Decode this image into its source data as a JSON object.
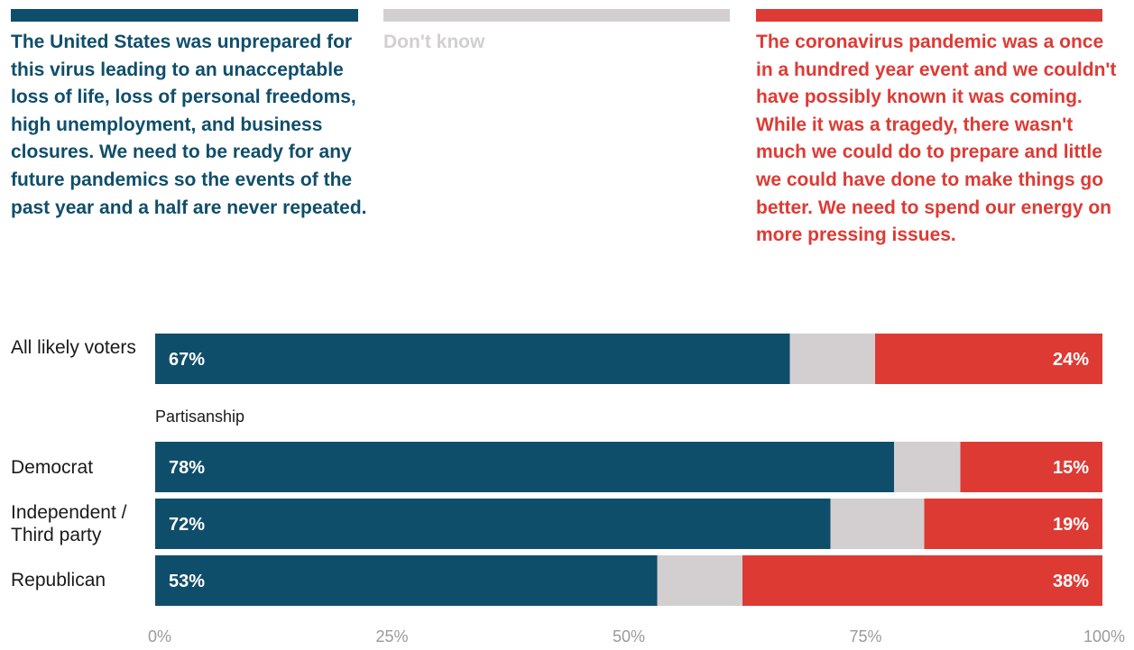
{
  "colors": {
    "prepared": "#0f4e6b",
    "dont_know": "#d3cfd1",
    "once_in_century": "#de3a34"
  },
  "legend": {
    "prepared": "The United States was unprepared for this virus leading to an unacceptable loss of life, loss of personal freedoms, high unemployment, and business closures. We need to be ready for any future pandemics so the events of the past year and a half are never repeated.",
    "dont_know": "Don't know",
    "once_in_century": "The coronavirus pandemic was a once in a hundred year event and we couldn't have possibly known it was coming. While it was a tragedy, there wasn't much we could do to prepare and little we could have done to make things go better. We need to spend our energy on more pressing issues."
  },
  "chart_data": {
    "type": "bar",
    "orientation": "horizontal",
    "stacked": true,
    "categories": [
      "All likely voters",
      "Democrat",
      "Independent / Third party",
      "Republican"
    ],
    "group_label": "Partisanship",
    "series": [
      {
        "name": "The United States was unprepared for this virus leading to an unacceptable loss of life, loss of personal freedoms, high unemployment, and business closures. We need to be ready for any future pandemics so the events of the past year and a half are never repeated.",
        "key": "prepared",
        "values": [
          67,
          78,
          72,
          53
        ],
        "labels": [
          "67%",
          "78%",
          "72%",
          "53%"
        ]
      },
      {
        "name": "Don't know",
        "key": "dont_know",
        "values": [
          9,
          7,
          10,
          9
        ],
        "labels": [
          "",
          "",
          "",
          ""
        ]
      },
      {
        "name": "The coronavirus pandemic was a once in a hundred year event and we couldn't have possibly known it was coming. While it was a tragedy, there wasn't much we could do to prepare and little we could have done to make things go better. We need to spend our energy on more pressing issues.",
        "key": "once_in_century",
        "values": [
          24,
          15,
          19,
          38
        ],
        "labels": [
          "24%",
          "15%",
          "19%",
          "38%"
        ]
      }
    ],
    "x_ticks": [
      "0%",
      "25%",
      "50%",
      "75%",
      "100%"
    ],
    "xlim": [
      0,
      100
    ],
    "grid": false,
    "legend_position": "top"
  }
}
